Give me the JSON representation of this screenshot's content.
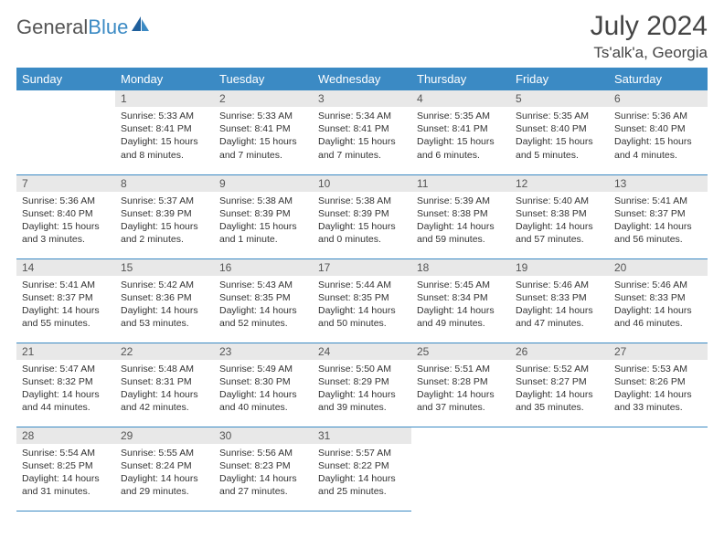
{
  "logo": {
    "gray": "General",
    "blue": "Blue"
  },
  "title": "July 2024",
  "location": "Ts'alk'a, Georgia",
  "colors": {
    "header_bg": "#3b8ac4",
    "header_text": "#ffffff",
    "daynum_bg": "#e8e8e8",
    "border": "#3b8ac4",
    "body_bg": "#ffffff",
    "text": "#333333"
  },
  "weekdays": [
    "Sunday",
    "Monday",
    "Tuesday",
    "Wednesday",
    "Thursday",
    "Friday",
    "Saturday"
  ],
  "weeks": [
    [
      null,
      {
        "n": "1",
        "sr": "5:33 AM",
        "ss": "8:41 PM",
        "dl": "15 hours and 8 minutes."
      },
      {
        "n": "2",
        "sr": "5:33 AM",
        "ss": "8:41 PM",
        "dl": "15 hours and 7 minutes."
      },
      {
        "n": "3",
        "sr": "5:34 AM",
        "ss": "8:41 PM",
        "dl": "15 hours and 7 minutes."
      },
      {
        "n": "4",
        "sr": "5:35 AM",
        "ss": "8:41 PM",
        "dl": "15 hours and 6 minutes."
      },
      {
        "n": "5",
        "sr": "5:35 AM",
        "ss": "8:40 PM",
        "dl": "15 hours and 5 minutes."
      },
      {
        "n": "6",
        "sr": "5:36 AM",
        "ss": "8:40 PM",
        "dl": "15 hours and 4 minutes."
      }
    ],
    [
      {
        "n": "7",
        "sr": "5:36 AM",
        "ss": "8:40 PM",
        "dl": "15 hours and 3 minutes."
      },
      {
        "n": "8",
        "sr": "5:37 AM",
        "ss": "8:39 PM",
        "dl": "15 hours and 2 minutes."
      },
      {
        "n": "9",
        "sr": "5:38 AM",
        "ss": "8:39 PM",
        "dl": "15 hours and 1 minute."
      },
      {
        "n": "10",
        "sr": "5:38 AM",
        "ss": "8:39 PM",
        "dl": "15 hours and 0 minutes."
      },
      {
        "n": "11",
        "sr": "5:39 AM",
        "ss": "8:38 PM",
        "dl": "14 hours and 59 minutes."
      },
      {
        "n": "12",
        "sr": "5:40 AM",
        "ss": "8:38 PM",
        "dl": "14 hours and 57 minutes."
      },
      {
        "n": "13",
        "sr": "5:41 AM",
        "ss": "8:37 PM",
        "dl": "14 hours and 56 minutes."
      }
    ],
    [
      {
        "n": "14",
        "sr": "5:41 AM",
        "ss": "8:37 PM",
        "dl": "14 hours and 55 minutes."
      },
      {
        "n": "15",
        "sr": "5:42 AM",
        "ss": "8:36 PM",
        "dl": "14 hours and 53 minutes."
      },
      {
        "n": "16",
        "sr": "5:43 AM",
        "ss": "8:35 PM",
        "dl": "14 hours and 52 minutes."
      },
      {
        "n": "17",
        "sr": "5:44 AM",
        "ss": "8:35 PM",
        "dl": "14 hours and 50 minutes."
      },
      {
        "n": "18",
        "sr": "5:45 AM",
        "ss": "8:34 PM",
        "dl": "14 hours and 49 minutes."
      },
      {
        "n": "19",
        "sr": "5:46 AM",
        "ss": "8:33 PM",
        "dl": "14 hours and 47 minutes."
      },
      {
        "n": "20",
        "sr": "5:46 AM",
        "ss": "8:33 PM",
        "dl": "14 hours and 46 minutes."
      }
    ],
    [
      {
        "n": "21",
        "sr": "5:47 AM",
        "ss": "8:32 PM",
        "dl": "14 hours and 44 minutes."
      },
      {
        "n": "22",
        "sr": "5:48 AM",
        "ss": "8:31 PM",
        "dl": "14 hours and 42 minutes."
      },
      {
        "n": "23",
        "sr": "5:49 AM",
        "ss": "8:30 PM",
        "dl": "14 hours and 40 minutes."
      },
      {
        "n": "24",
        "sr": "5:50 AM",
        "ss": "8:29 PM",
        "dl": "14 hours and 39 minutes."
      },
      {
        "n": "25",
        "sr": "5:51 AM",
        "ss": "8:28 PM",
        "dl": "14 hours and 37 minutes."
      },
      {
        "n": "26",
        "sr": "5:52 AM",
        "ss": "8:27 PM",
        "dl": "14 hours and 35 minutes."
      },
      {
        "n": "27",
        "sr": "5:53 AM",
        "ss": "8:26 PM",
        "dl": "14 hours and 33 minutes."
      }
    ],
    [
      {
        "n": "28",
        "sr": "5:54 AM",
        "ss": "8:25 PM",
        "dl": "14 hours and 31 minutes."
      },
      {
        "n": "29",
        "sr": "5:55 AM",
        "ss": "8:24 PM",
        "dl": "14 hours and 29 minutes."
      },
      {
        "n": "30",
        "sr": "5:56 AM",
        "ss": "8:23 PM",
        "dl": "14 hours and 27 minutes."
      },
      {
        "n": "31",
        "sr": "5:57 AM",
        "ss": "8:22 PM",
        "dl": "14 hours and 25 minutes."
      },
      null,
      null,
      null
    ]
  ],
  "labels": {
    "sunrise": "Sunrise:",
    "sunset": "Sunset:",
    "daylight": "Daylight:"
  }
}
